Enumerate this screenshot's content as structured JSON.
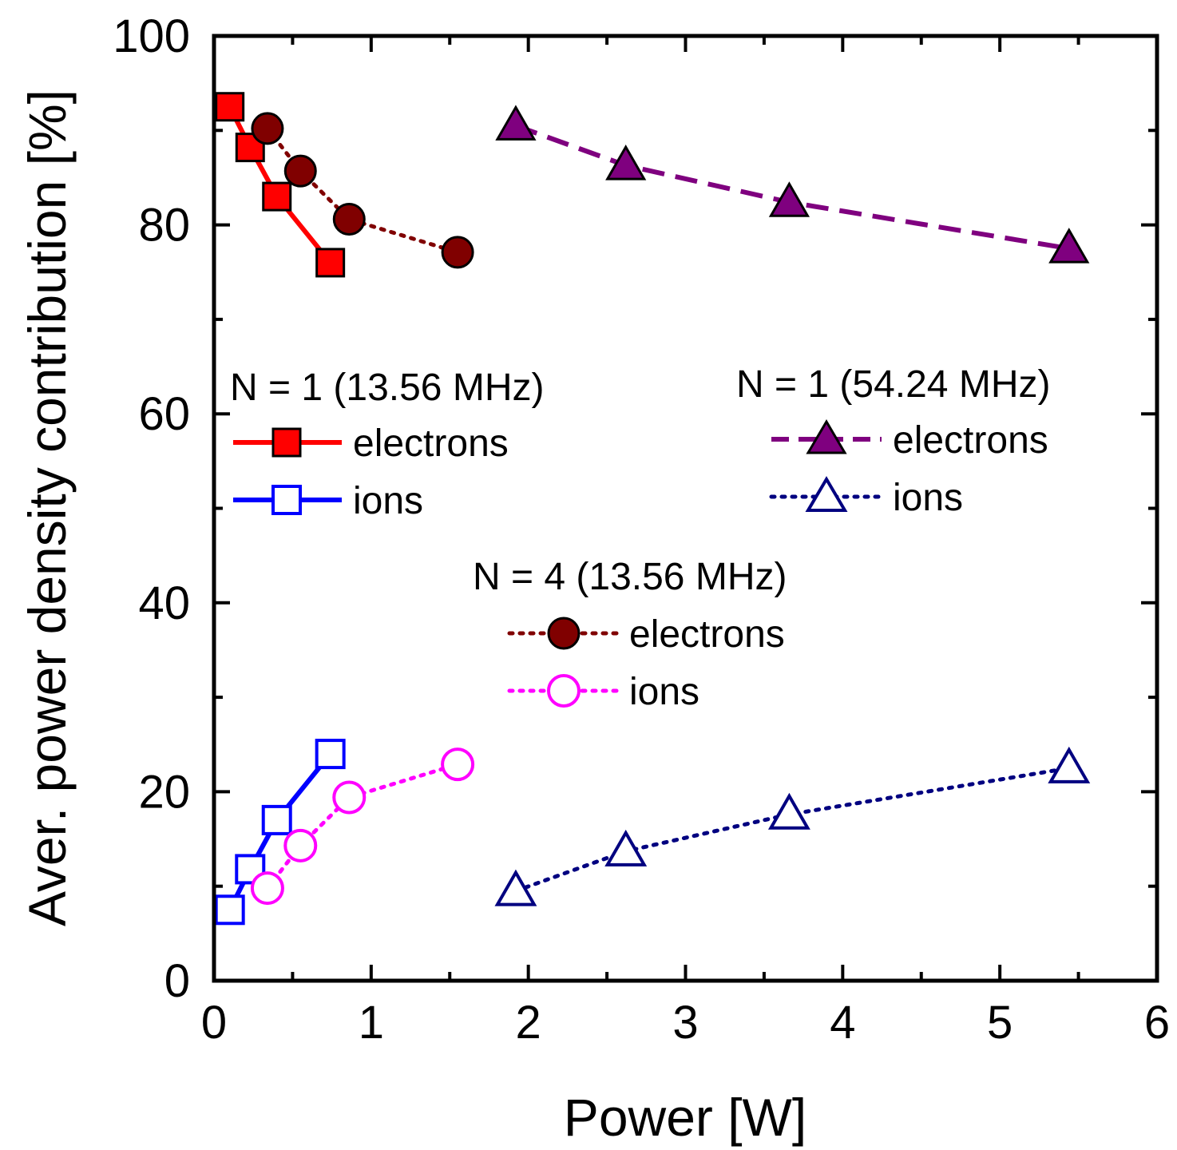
{
  "chart_data": {
    "type": "line",
    "title": "",
    "xlabel": "Power [W]",
    "ylabel": "Aver. power density contribution [%]",
    "xlim": [
      0,
      6
    ],
    "ylim": [
      0,
      100
    ],
    "x_ticks": [
      0,
      1,
      2,
      3,
      4,
      5,
      6
    ],
    "y_ticks": [
      0,
      20,
      40,
      60,
      80,
      100
    ],
    "x_tick_labels": [
      "0",
      "1",
      "2",
      "3",
      "4",
      "5",
      "6"
    ],
    "y_tick_labels": [
      "0",
      "20",
      "40",
      "60",
      "80",
      "100"
    ],
    "grid": false,
    "legend_groups": [
      {
        "title": "N = 1 (13.56 MHz)",
        "entries": [
          "electrons",
          "ions"
        ]
      },
      {
        "title": "N = 1 (54.24 MHz)",
        "entries": [
          "electrons",
          "ions"
        ]
      },
      {
        "title": "N = 4 (13.56 MHz)",
        "entries": [
          "electrons",
          "ions"
        ]
      }
    ],
    "series": [
      {
        "group": "N = 1 (13.56 MHz)",
        "name": "electrons",
        "color": "#ff0000",
        "marker": "square",
        "filled": true,
        "line": "solid",
        "x": [
          0.1,
          0.23,
          0.4,
          0.74
        ],
        "y": [
          92.5,
          88.2,
          83.0,
          76.0
        ]
      },
      {
        "group": "N = 1 (13.56 MHz)",
        "name": "ions",
        "color": "#0000ff",
        "marker": "square",
        "filled": false,
        "line": "solid",
        "x": [
          0.1,
          0.23,
          0.4,
          0.74
        ],
        "y": [
          7.5,
          11.8,
          17.0,
          24.0
        ]
      },
      {
        "group": "N = 1 (54.24 MHz)",
        "name": "electrons",
        "color": "#7f007f",
        "marker": "triangle",
        "filled": true,
        "line": "dashed",
        "x": [
          1.92,
          2.62,
          3.66,
          5.44
        ],
        "y": [
          90.5,
          86.3,
          82.4,
          77.5
        ]
      },
      {
        "group": "N = 1 (54.24 MHz)",
        "name": "ions",
        "color": "#000080",
        "marker": "triangle",
        "filled": false,
        "line": "dotted",
        "x": [
          1.92,
          2.62,
          3.66,
          5.44
        ],
        "y": [
          9.5,
          13.7,
          17.6,
          22.5
        ]
      },
      {
        "group": "N = 4 (13.56 MHz)",
        "name": "electrons",
        "color": "#800000",
        "marker": "circle",
        "filled": true,
        "line": "dotted",
        "x": [
          0.34,
          0.55,
          0.86,
          1.55
        ],
        "y": [
          90.2,
          85.7,
          80.6,
          77.1
        ]
      },
      {
        "group": "N = 4 (13.56 MHz)",
        "name": "ions",
        "color": "#ff00ff",
        "marker": "circle",
        "filled": false,
        "line": "dotted",
        "x": [
          0.34,
          0.55,
          0.86,
          1.55
        ],
        "y": [
          9.8,
          14.3,
          19.4,
          22.9
        ]
      }
    ]
  }
}
